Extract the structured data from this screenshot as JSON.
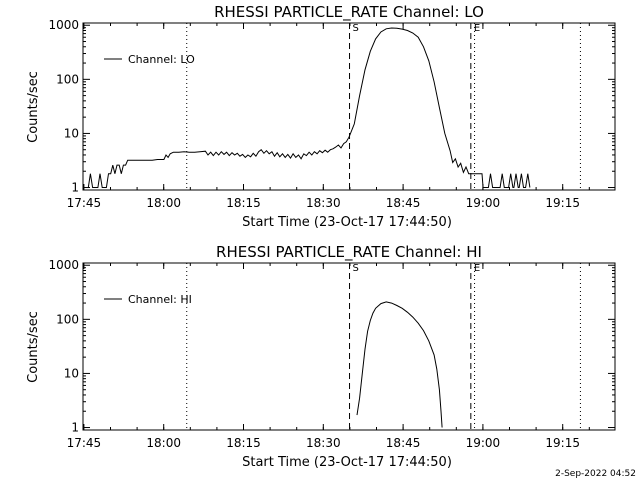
{
  "footer_stamp": "2-Sep-2022 04:52",
  "chart_data": [
    {
      "type": "line",
      "title": "RHESSI PARTICLE_RATE Channel: LO",
      "xlabel": "Start Time (23-Oct-17 17:44:50)",
      "ylabel": "Counts/sec",
      "x_unit": "minutes after 17:44:50",
      "x_ticks": [
        {
          "label": "17:45",
          "x": 0.17
        },
        {
          "label": "18:00",
          "x": 15.17
        },
        {
          "label": "18:15",
          "x": 30.17
        },
        {
          "label": "18:30",
          "x": 45.17
        },
        {
          "label": "18:45",
          "x": 60.17
        },
        {
          "label": "19:00",
          "x": 75.17
        },
        {
          "label": "19:15",
          "x": 90.17
        }
      ],
      "xlim": [
        0,
        100
      ],
      "y_scale": "log",
      "ylim": [
        0.9,
        1100
      ],
      "y_ticks": [
        {
          "label": "1",
          "y": 1
        },
        {
          "label": "10",
          "y": 10
        },
        {
          "label": "100",
          "y": 100
        },
        {
          "label": "1000",
          "y": 1000
        }
      ],
      "grid": false,
      "legend": "top-left",
      "series": [
        {
          "name": "Channel: LO",
          "points": [
            [
              1.0,
              1
            ],
            [
              1.4,
              1.8
            ],
            [
              1.8,
              1
            ],
            [
              2.8,
              1
            ],
            [
              3.2,
              1.8
            ],
            [
              3.6,
              1
            ],
            [
              4.4,
              1
            ],
            [
              4.8,
              1.8
            ],
            [
              5.2,
              1.8
            ],
            [
              5.6,
              2.6
            ],
            [
              6.0,
              1.8
            ],
            [
              6.4,
              2.6
            ],
            [
              6.8,
              2.6
            ],
            [
              7.2,
              1.8
            ],
            [
              7.6,
              2.6
            ],
            [
              8.0,
              2.6
            ],
            [
              8.4,
              3.2
            ],
            [
              9.0,
              3.2
            ],
            [
              10.0,
              3.2
            ],
            [
              11.0,
              3.2
            ],
            [
              12.0,
              3.2
            ],
            [
              13.0,
              3.2
            ],
            [
              14.0,
              3.3
            ],
            [
              15.2,
              3.3
            ],
            [
              15.6,
              4.0
            ],
            [
              16.0,
              3.6
            ],
            [
              16.4,
              4.2
            ],
            [
              17.0,
              4.5
            ],
            [
              18.0,
              4.5
            ],
            [
              19.0,
              4.6
            ],
            [
              20.0,
              4.5
            ],
            [
              21.0,
              4.5
            ],
            [
              22.0,
              4.6
            ],
            [
              23.0,
              4.7
            ],
            [
              23.5,
              4.0
            ],
            [
              24.0,
              4.5
            ],
            [
              24.5,
              3.9
            ],
            [
              25.0,
              4.5
            ],
            [
              25.5,
              4.0
            ],
            [
              26.0,
              4.6
            ],
            [
              26.5,
              4.1
            ],
            [
              27.0,
              4.5
            ],
            [
              27.5,
              3.9
            ],
            [
              28.0,
              4.4
            ],
            [
              28.5,
              4.0
            ],
            [
              29.0,
              4.3
            ],
            [
              29.5,
              3.8
            ],
            [
              30.0,
              4.1
            ],
            [
              30.5,
              3.6
            ],
            [
              31.0,
              4.0
            ],
            [
              31.5,
              3.7
            ],
            [
              32.0,
              4.3
            ],
            [
              32.5,
              3.8
            ],
            [
              33.0,
              4.6
            ],
            [
              33.5,
              5.0
            ],
            [
              34.0,
              4.3
            ],
            [
              34.5,
              4.8
            ],
            [
              35.0,
              4.2
            ],
            [
              35.5,
              4.6
            ],
            [
              36.0,
              3.8
            ],
            [
              36.5,
              4.4
            ],
            [
              37.0,
              3.7
            ],
            [
              37.5,
              4.2
            ],
            [
              38.0,
              3.6
            ],
            [
              38.5,
              4.1
            ],
            [
              39.0,
              3.5
            ],
            [
              39.5,
              4.2
            ],
            [
              40.0,
              3.6
            ],
            [
              40.5,
              4.0
            ],
            [
              41.0,
              3.4
            ],
            [
              41.5,
              4.2
            ],
            [
              42.0,
              3.9
            ],
            [
              42.5,
              4.5
            ],
            [
              43.0,
              4.0
            ],
            [
              43.5,
              4.6
            ],
            [
              44.0,
              4.2
            ],
            [
              44.5,
              4.8
            ],
            [
              45.0,
              4.4
            ],
            [
              45.5,
              4.9
            ],
            [
              46.0,
              4.5
            ],
            [
              46.5,
              5.0
            ],
            [
              47.0,
              5.2
            ],
            [
              47.5,
              5.6
            ],
            [
              48.0,
              6.1
            ],
            [
              48.5,
              5.4
            ],
            [
              49.0,
              6.5
            ],
            [
              49.5,
              7.0
            ],
            [
              50.0,
              8.5
            ],
            [
              51.0,
              15
            ],
            [
              52.0,
              50
            ],
            [
              53.0,
              150
            ],
            [
              54.0,
              330
            ],
            [
              55.0,
              560
            ],
            [
              56.0,
              750
            ],
            [
              57.0,
              860
            ],
            [
              58.0,
              890
            ],
            [
              59.0,
              880
            ],
            [
              60.0,
              850
            ],
            [
              61.0,
              800
            ],
            [
              62.0,
              720
            ],
            [
              63.0,
              600
            ],
            [
              64.0,
              400
            ],
            [
              65.0,
              220
            ],
            [
              66.0,
              90
            ],
            [
              67.0,
              30
            ],
            [
              68.0,
              10
            ],
            [
              69.0,
              4.8
            ],
            [
              69.5,
              2.9
            ],
            [
              70.0,
              3.4
            ],
            [
              70.5,
              2.4
            ],
            [
              71.0,
              2.8
            ],
            [
              71.5,
              1.9
            ],
            [
              72.0,
              2.4
            ],
            [
              72.5,
              1.8
            ],
            [
              73.0,
              1.8
            ],
            [
              74.0,
              1.8
            ],
            [
              75.0,
              1.8
            ],
            [
              75.2,
              1
            ],
            [
              76.2,
              1
            ],
            [
              76.6,
              1.8
            ],
            [
              77.0,
              1
            ],
            [
              78.4,
              1
            ],
            [
              78.8,
              1.8
            ],
            [
              79.2,
              1
            ],
            [
              80.0,
              1
            ],
            [
              80.4,
              1.8
            ],
            [
              80.8,
              1
            ],
            [
              81.0,
              1
            ],
            [
              81.4,
              1.8
            ],
            [
              81.8,
              1
            ],
            [
              82.0,
              1
            ],
            [
              82.4,
              1.8
            ],
            [
              82.8,
              1
            ],
            [
              83.2,
              1
            ],
            [
              83.6,
              1.8
            ],
            [
              84.0,
              1
            ]
          ]
        }
      ],
      "markers": [
        {
          "label": "S",
          "x": 50.1,
          "style": "dashed"
        },
        {
          "label": "E",
          "x": 72.9,
          "style": "dashed"
        }
      ],
      "dotted_lines_x": [
        19.5,
        73.6,
        93.5
      ]
    },
    {
      "type": "line",
      "title": "RHESSI PARTICLE_RATE Channel: HI",
      "xlabel": "Start Time (23-Oct-17 17:44:50)",
      "ylabel": "Counts/sec",
      "x_unit": "minutes after 17:44:50",
      "x_ticks": [
        {
          "label": "17:45",
          "x": 0.17
        },
        {
          "label": "18:00",
          "x": 15.17
        },
        {
          "label": "18:15",
          "x": 30.17
        },
        {
          "label": "18:30",
          "x": 45.17
        },
        {
          "label": "18:45",
          "x": 60.17
        },
        {
          "label": "19:00",
          "x": 75.17
        },
        {
          "label": "19:15",
          "x": 90.17
        }
      ],
      "xlim": [
        0,
        100
      ],
      "y_scale": "log",
      "ylim": [
        0.9,
        1100
      ],
      "y_ticks": [
        {
          "label": "1",
          "y": 1
        },
        {
          "label": "10",
          "y": 10
        },
        {
          "label": "100",
          "y": 100
        },
        {
          "label": "1000",
          "y": 1000
        }
      ],
      "grid": false,
      "legend": "top-left",
      "series": [
        {
          "name": "Channel: HI",
          "points": [
            [
              51.5,
              1.7
            ],
            [
              52.0,
              3.5
            ],
            [
              52.5,
              10
            ],
            [
              53.0,
              28
            ],
            [
              53.5,
              60
            ],
            [
              54.0,
              95
            ],
            [
              54.5,
              130
            ],
            [
              55.0,
              160
            ],
            [
              56.0,
              195
            ],
            [
              57.0,
              210
            ],
            [
              58.0,
              200
            ],
            [
              59.0,
              180
            ],
            [
              60.0,
              160
            ],
            [
              61.0,
              135
            ],
            [
              62.0,
              110
            ],
            [
              63.0,
              85
            ],
            [
              64.0,
              62
            ],
            [
              65.0,
              40
            ],
            [
              66.0,
              22
            ],
            [
              66.5,
              12
            ],
            [
              67.0,
              5
            ],
            [
              67.3,
              2
            ],
            [
              67.5,
              1.0
            ]
          ]
        }
      ],
      "markers": [
        {
          "label": "S",
          "x": 50.1,
          "style": "dashed"
        },
        {
          "label": "E",
          "x": 72.9,
          "style": "dashed"
        }
      ],
      "dotted_lines_x": [
        19.5,
        73.6,
        93.5
      ]
    }
  ]
}
